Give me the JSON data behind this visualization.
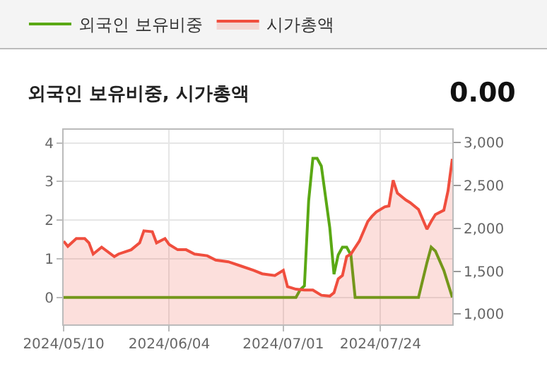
{
  "chart_data": {
    "type": "line",
    "title": "외국인 보유비중, 시가총액",
    "annotations": [
      "0.00"
    ],
    "x": [
      "2024-05-10",
      "2024-05-11",
      "2024-05-13",
      "2024-05-15",
      "2024-05-16",
      "2024-05-17",
      "2024-05-19",
      "2024-05-22",
      "2024-05-23",
      "2024-05-26",
      "2024-05-28",
      "2024-05-29",
      "2024-05-31",
      "2024-06-01",
      "2024-06-03",
      "2024-06-04",
      "2024-06-06",
      "2024-06-08",
      "2024-06-10",
      "2024-06-13",
      "2024-06-15",
      "2024-06-18",
      "2024-06-21",
      "2024-06-24",
      "2024-06-26",
      "2024-06-29",
      "2024-07-01",
      "2024-07-02",
      "2024-07-04",
      "2024-07-06",
      "2024-07-08",
      "2024-07-10",
      "2024-07-12",
      "2024-07-13",
      "2024-07-14",
      "2024-07-15",
      "2024-07-16",
      "2024-07-17",
      "2024-07-19",
      "2024-07-21",
      "2024-07-22",
      "2024-07-23",
      "2024-07-25",
      "2024-07-26",
      "2024-07-27",
      "2024-07-28",
      "2024-07-30",
      "2024-07-31",
      "2024-08-02",
      "2024-08-04",
      "2024-08-05",
      "2024-08-06",
      "2024-08-08",
      "2024-08-09",
      "2024-08-10"
    ],
    "series": [
      {
        "name": "외국인 보유비중",
        "color": "#5aa814",
        "x": [
          "2024-05-10",
          "2024-07-04",
          "2024-07-05",
          "2024-07-06",
          "2024-07-07",
          "2024-07-08",
          "2024-07-09",
          "2024-07-10",
          "2024-07-11",
          "2024-07-12",
          "2024-07-13",
          "2024-07-14",
          "2024-07-15",
          "2024-07-16",
          "2024-07-17",
          "2024-07-18",
          "2024-08-02",
          "2024-08-04",
          "2024-08-05",
          "2024-08-06",
          "2024-08-08",
          "2024-08-10"
        ],
        "values": [
          0,
          0,
          0.2,
          0.3,
          2.5,
          3.6,
          3.6,
          3.4,
          2.6,
          1.8,
          0.6,
          1.1,
          1.3,
          1.3,
          1.1,
          0,
          0,
          0.9,
          1.3,
          1.2,
          0.7,
          0
        ]
      },
      {
        "name": "시가총액",
        "type": "area",
        "axis": "y2",
        "color": "#f04e3e",
        "values": [
          1850,
          1790,
          1880,
          1880,
          1830,
          1700,
          1780,
          1670,
          1700,
          1750,
          1830,
          1970,
          1960,
          1830,
          1880,
          1810,
          1750,
          1750,
          1700,
          1680,
          1630,
          1610,
          1560,
          1510,
          1470,
          1450,
          1510,
          1320,
          1290,
          1280,
          1280,
          1220,
          1210,
          1250,
          1410,
          1450,
          1670,
          1700,
          1850,
          2080,
          2140,
          2190,
          2250,
          2260,
          2560,
          2410,
          2330,
          2300,
          2220,
          1990,
          2080,
          2160,
          2210,
          2440,
          2810
        ]
      }
    ],
    "xlim": [
      "2024-05-10",
      "2024-08-10"
    ],
    "xticks": [
      {
        "value": "2024-05-10",
        "label": "2024/05/10"
      },
      {
        "value": "2024-06-04",
        "label": "2024/06/04"
      },
      {
        "value": "2024-07-01",
        "label": "2024/07/01"
      },
      {
        "value": "2024-07-24",
        "label": "2024/07/24"
      }
    ],
    "ylim": [
      -0.7,
      4.34
    ],
    "yticks": [
      0,
      1,
      2,
      3,
      4
    ],
    "y2lim": [
      880,
      3148
    ],
    "y2ticks": [
      {
        "value": 1000,
        "label": "1,000"
      },
      {
        "value": 1500,
        "label": "1,500"
      },
      {
        "value": 2000,
        "label": "2,000"
      },
      {
        "value": 2500,
        "label": "2,500"
      },
      {
        "value": 3000,
        "label": "3,000"
      }
    ],
    "grid": true,
    "legend": "top left"
  }
}
